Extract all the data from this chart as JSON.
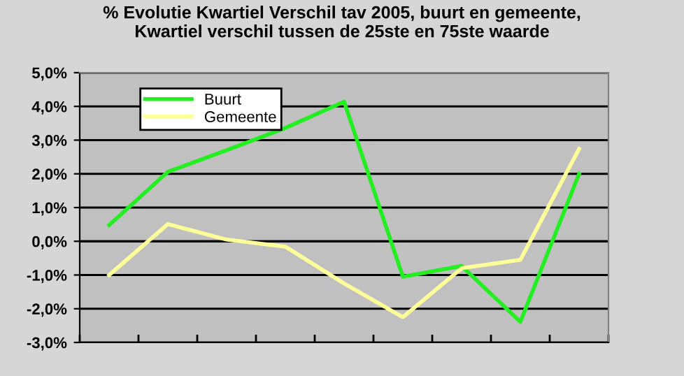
{
  "chart_data": {
    "type": "line",
    "title": "% Evolutie Kwartiel Verschil tav 2005, buurt en gemeente,\nKwartiel verschil tussen de 25ste en 75ste waarde",
    "categories": [
      null,
      null,
      null,
      null,
      null,
      null,
      null,
      null,
      null
    ],
    "series": [
      {
        "name": "Buurt",
        "color": "#22ee22",
        "values": [
          0.48,
          2.06,
          2.7,
          3.36,
          4.14,
          -1.05,
          -0.73,
          -2.39,
          2.0
        ]
      },
      {
        "name": "Gemeente",
        "color": "#ffff99",
        "values": [
          -1.0,
          0.51,
          0.05,
          -0.16,
          -1.25,
          -2.25,
          -0.8,
          -0.55,
          2.74
        ]
      }
    ],
    "ylim": [
      -3,
      5
    ],
    "yticks": [
      {
        "value": -3,
        "label": "-3,0%"
      },
      {
        "value": -2,
        "label": "-2,0%"
      },
      {
        "value": -1,
        "label": "-1,0%"
      },
      {
        "value": 0,
        "label": "0,0%"
      },
      {
        "value": 1,
        "label": "1,0%"
      },
      {
        "value": 2,
        "label": "2,0%"
      },
      {
        "value": 3,
        "label": "3,0%"
      },
      {
        "value": 4,
        "label": "4,0%"
      },
      {
        "value": 5,
        "label": "5,0%"
      }
    ],
    "grid": "y",
    "legend": "top left",
    "tick_labels": "y",
    "marker": "none",
    "line_style": "solid"
  }
}
